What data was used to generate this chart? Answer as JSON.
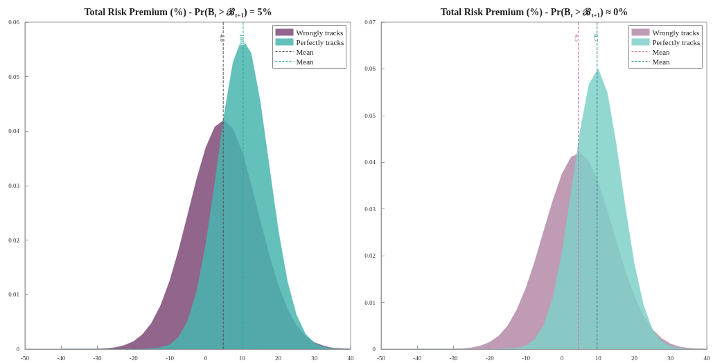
{
  "chart_data": [
    {
      "type": "area",
      "title": "Total Risk Premium (%) - Pr(B$_{t}$ > ℬ$_{t+1}$) = 5%",
      "x": [
        -40,
        -37.5,
        -35,
        -32.5,
        -30,
        -27.5,
        -25,
        -22.5,
        -20,
        -17.5,
        -15,
        -12.5,
        -10,
        -7.5,
        -5,
        -2.5,
        0,
        2.5,
        5,
        7.5,
        10,
        12.5,
        15,
        17.5,
        20,
        22.5,
        25,
        27.5,
        30,
        32.5,
        35,
        37.5,
        40
      ],
      "series": [
        {
          "name": "Wrongly tracks",
          "color": "#7e4a78",
          "values": [
            0,
            0,
            0,
            0,
            0,
            0.0001,
            0.0003,
            0.0007,
            0.0014,
            0.0027,
            0.0048,
            0.008,
            0.0125,
            0.0182,
            0.0247,
            0.0313,
            0.037,
            0.0408,
            0.042,
            0.0404,
            0.0362,
            0.0302,
            0.0236,
            0.0172,
            0.0117,
            0.0074,
            0.0044,
            0.0024,
            0.0012,
            0.0006,
            0.0002,
            0.0001,
            0
          ]
        },
        {
          "name": "Perfectly tracks",
          "color": "#48b5ae",
          "values": [
            0,
            0,
            0,
            0,
            0,
            0,
            0,
            0,
            0,
            0,
            0.0001,
            0.0003,
            0.0008,
            0.0022,
            0.0052,
            0.0107,
            0.0193,
            0.0306,
            0.0428,
            0.0526,
            0.057,
            0.0543,
            0.0455,
            0.0336,
            0.0218,
            0.0125,
            0.0063,
            0.0028,
            0.0011,
            0.0004,
            0.0001,
            0,
            0
          ]
        },
        {
          "name": "Mean",
          "type": "line",
          "color": "#5a4a5a",
          "line_style": "dashed",
          "x": [
            4.8,
            4.8
          ],
          "values": [
            0,
            0.06
          ]
        },
        {
          "name": "Mean",
          "type": "line",
          "color": "#2aa89a",
          "line_style": "dashed",
          "x": [
            10.3,
            10.3
          ],
          "values": [
            0,
            0.06
          ]
        }
      ],
      "annotations": [
        {
          "text": "4.8",
          "x": 4.8,
          "y": 0.06
        },
        {
          "text": "10.3",
          "x": 10.3,
          "y": 0.06
        }
      ],
      "xlim": [
        -50,
        40
      ],
      "xticks": [
        -50,
        -40,
        -30,
        -20,
        -10,
        0,
        10,
        20,
        30,
        40
      ],
      "ylim": [
        0,
        0.06
      ],
      "yticks": [
        0,
        0.01,
        0.02,
        0.03,
        0.04,
        0.05,
        0.06
      ],
      "legend": "top right",
      "grid": false
    },
    {
      "type": "area",
      "title": "Total Risk Premium (%) - Pr(B$_{t}$ > ℬ$_{t+1}$) ≈ 0%",
      "x": [
        -40,
        -37.5,
        -35,
        -32.5,
        -30,
        -27.5,
        -25,
        -22.5,
        -20,
        -17.5,
        -15,
        -12.5,
        -10,
        -7.5,
        -5,
        -2.5,
        0,
        2.5,
        5,
        7.5,
        10,
        12.5,
        15,
        17.5,
        20,
        22.5,
        25,
        27.5,
        30,
        32.5,
        35,
        37.5,
        40
      ],
      "series": [
        {
          "name": "Wrongly tracks",
          "color": "#b58aa8",
          "values": [
            0,
            0,
            0,
            0,
            0,
            0.0001,
            0.0003,
            0.0007,
            0.0015,
            0.0028,
            0.005,
            0.0084,
            0.013,
            0.0188,
            0.0254,
            0.0319,
            0.0375,
            0.0411,
            0.042,
            0.0401,
            0.0357,
            0.0296,
            0.023,
            0.0167,
            0.0113,
            0.0071,
            0.0042,
            0.0023,
            0.0011,
            0.0005,
            0.0002,
            0.0001,
            0
          ]
        },
        {
          "name": "Perfectly tracks",
          "color": "#7fd0c8",
          "values": [
            0,
            0,
            0,
            0,
            0,
            0,
            0,
            0,
            0,
            0,
            0.0001,
            0.0002,
            0.0007,
            0.0021,
            0.0052,
            0.0111,
            0.0207,
            0.0334,
            0.0467,
            0.0568,
            0.06,
            0.0549,
            0.0437,
            0.0302,
            0.0181,
            0.0094,
            0.0042,
            0.0017,
            0.0006,
            0.0002,
            0,
            0,
            0
          ]
        },
        {
          "name": "Mean",
          "type": "line",
          "color": "#d070b0",
          "line_style": "dashed",
          "x": [
            4.5,
            4.5
          ],
          "values": [
            0,
            0.07
          ]
        },
        {
          "name": "Mean",
          "type": "line",
          "color": "#2a8a90",
          "line_style": "dashed",
          "x": [
            9.7,
            9.7
          ],
          "values": [
            0,
            0.07
          ]
        }
      ],
      "annotations": [
        {
          "text": "4.5",
          "x": 4.5,
          "y": 0.07
        },
        {
          "text": "9.7",
          "x": 9.7,
          "y": 0.07
        }
      ],
      "xlim": [
        -50,
        40
      ],
      "xticks": [
        -50,
        -40,
        -30,
        -20,
        -10,
        0,
        10,
        20,
        30,
        40
      ],
      "ylim": [
        0,
        0.07
      ],
      "yticks": [
        0,
        0.01,
        0.02,
        0.03,
        0.04,
        0.05,
        0.06,
        0.07
      ],
      "legend": "top right",
      "grid": false
    }
  ]
}
